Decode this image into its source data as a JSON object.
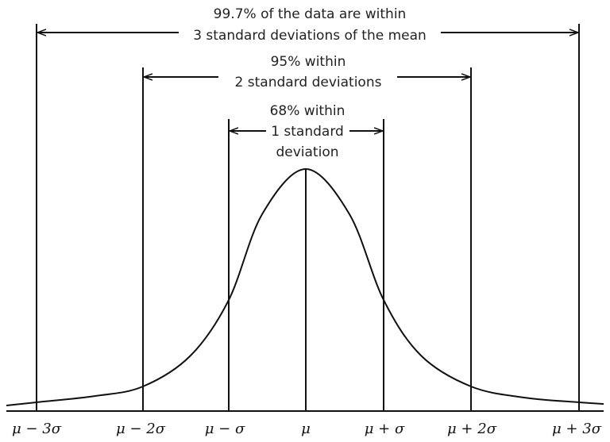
{
  "annotations": [
    {
      "lines": [
        "99.7% of the data are within",
        "3 standard deviations of the mean"
      ]
    },
    {
      "lines": [
        "95% within",
        "2 standard deviations"
      ]
    },
    {
      "lines": [
        "68% within",
        "1 standard",
        "deviation"
      ]
    }
  ],
  "axis_labels": [
    "μ − 3σ",
    "μ − 2σ",
    "μ − σ",
    "μ",
    "μ + σ",
    "μ + 2σ",
    "μ + 3σ"
  ]
}
